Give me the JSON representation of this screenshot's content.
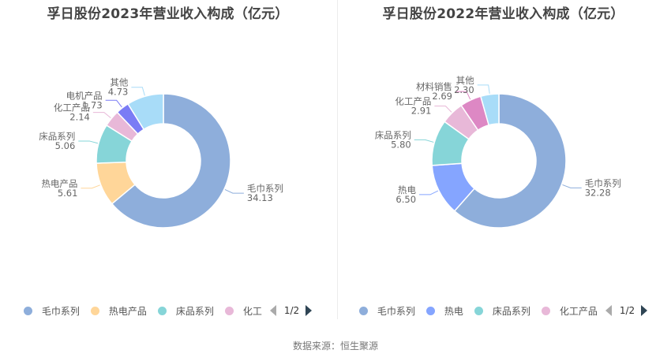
{
  "source_label": "数据来源：恒生聚源",
  "charts": [
    {
      "title": "孚日股份2023年营业收入构成（亿元）",
      "legend": {
        "items": [
          {
            "label": "毛巾系列",
            "color": "#8eaedb"
          },
          {
            "label": "热电产品",
            "color": "#ffd699"
          },
          {
            "label": "床品系列",
            "color": "#86d5d8"
          },
          {
            "label": "化工",
            "color": "#e8b8d8"
          }
        ],
        "page": "1/2"
      }
    },
    {
      "title": "孚日股份2022年营业收入构成（亿元）",
      "legend": {
        "items": [
          {
            "label": "毛巾系列",
            "color": "#8eaedb"
          },
          {
            "label": "热电",
            "color": "#85a5ff"
          },
          {
            "label": "床品系列",
            "color": "#86d5d8"
          },
          {
            "label": "化工产品",
            "color": "#e8b8d8"
          }
        ],
        "page": "1/2"
      }
    }
  ],
  "chart_data": [
    {
      "type": "pie",
      "variant": "donut",
      "title": "孚日股份2023年营业收入构成（亿元）",
      "unit": "亿元",
      "categories": [
        "毛巾系列",
        "热电产品",
        "床品系列",
        "化工产品",
        "电机产品",
        "其他"
      ],
      "values": [
        34.13,
        5.61,
        5.06,
        2.14,
        1.73,
        4.73
      ],
      "colors": [
        "#8eaedb",
        "#ffd699",
        "#86d5d8",
        "#e8b8d8",
        "#7a7cf5",
        "#a8dcf8"
      ],
      "legend_position": "bottom",
      "legend_page": "1/2"
    },
    {
      "type": "pie",
      "variant": "donut",
      "title": "孚日股份2022年营业收入构成（亿元）",
      "unit": "亿元",
      "categories": [
        "毛巾系列",
        "热电",
        "床品系列",
        "化工产品",
        "材料销售",
        "其他"
      ],
      "values": [
        32.28,
        6.5,
        5.8,
        2.91,
        2.69,
        2.3
      ],
      "colors": [
        "#8eaedb",
        "#85a5ff",
        "#86d5d8",
        "#e8b8d8",
        "#dd88c4",
        "#a8dcf8"
      ],
      "legend_position": "bottom",
      "legend_page": "1/2"
    }
  ]
}
